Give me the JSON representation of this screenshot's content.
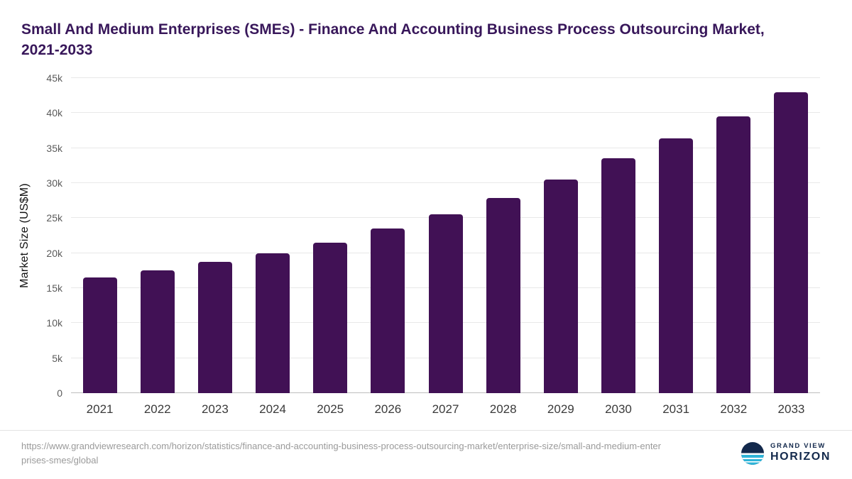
{
  "title": "Small And Medium Enterprises (SMEs) - Finance And Accounting Business Process Outsourcing Market, 2021-2033",
  "chart_data": {
    "type": "bar",
    "title": "Small And Medium Enterprises (SMEs) - Finance And Accounting Business Process Outsourcing Market, 2021-2033",
    "categories": [
      "2021",
      "2022",
      "2023",
      "2024",
      "2025",
      "2026",
      "2027",
      "2028",
      "2029",
      "2030",
      "2031",
      "2032",
      "2033"
    ],
    "values": [
      16500,
      17500,
      18700,
      20000,
      21500,
      23500,
      25500,
      27900,
      30500,
      33500,
      36400,
      39500,
      43000
    ],
    "xlabel": "",
    "ylabel": "Market Size (US$M)",
    "ylim": [
      0,
      45000
    ],
    "yticks": [
      0,
      5000,
      10000,
      15000,
      20000,
      25000,
      30000,
      35000,
      40000,
      45000
    ],
    "ytick_labels": [
      "0",
      "5k",
      "10k",
      "15k",
      "20k",
      "25k",
      "30k",
      "35k",
      "40k",
      "45k"
    ],
    "bar_color": "#411155",
    "grid": true,
    "legend": "none"
  },
  "footer": {
    "source_url": "https://www.grandviewresearch.com/horizon/statistics/finance-and-accounting-business-process-outsourcing-market/enterprise-size/small-and-medium-enterprises-smes/global",
    "logo": {
      "line1": "GRAND VIEW",
      "line2": "HORIZON"
    }
  },
  "colors": {
    "bar": "#411155",
    "title_text": "#38175a",
    "logo_navy": "#13294c",
    "logo_teal": "#2fb4d8"
  }
}
